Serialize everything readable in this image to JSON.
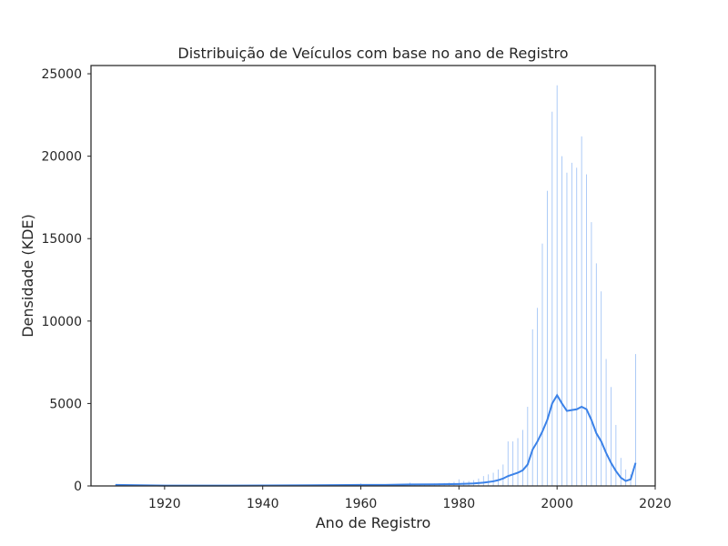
{
  "chart_data": {
    "type": "bar",
    "title": "Distribuição de Veículos com base no ano de Registro",
    "xlabel": "Ano de Registro",
    "ylabel": "Densidade (KDE)",
    "xlim": [
      1905,
      2020
    ],
    "ylim": [
      0,
      25500
    ],
    "xticks": [
      1920,
      1940,
      1960,
      1980,
      2000,
      2020
    ],
    "yticks": [
      0,
      5000,
      10000,
      15000,
      20000,
      25000
    ],
    "grid": false,
    "legend": "none",
    "bar_color": "#4a8cec",
    "line_color": "#3b82e8",
    "histogram": {
      "x": [
        1910,
        1960,
        1965,
        1968,
        1970,
        1971,
        1972,
        1973,
        1974,
        1975,
        1976,
        1977,
        1978,
        1979,
        1980,
        1981,
        1982,
        1983,
        1984,
        1985,
        1986,
        1987,
        1988,
        1989,
        1990,
        1991,
        1992,
        1993,
        1994,
        1995,
        1996,
        1997,
        1998,
        1999,
        2000,
        2001,
        2002,
        2003,
        2004,
        2005,
        2006,
        2007,
        2008,
        2009,
        2010,
        2011,
        2012,
        2013,
        2014,
        2015,
        2016
      ],
      "values": [
        100,
        150,
        80,
        100,
        200,
        130,
        120,
        130,
        120,
        150,
        160,
        180,
        200,
        250,
        400,
        300,
        300,
        350,
        450,
        600,
        700,
        800,
        1000,
        1300,
        2700,
        2700,
        2900,
        3400,
        4800,
        9500,
        10800,
        14700,
        17900,
        22700,
        24300,
        20000,
        19000,
        19600,
        19300,
        21200,
        18900,
        16000,
        13500,
        11800,
        7700,
        6000,
        3700,
        1700,
        1000,
        700,
        8000
      ]
    },
    "kde": {
      "x": [
        1910,
        1920,
        1930,
        1940,
        1950,
        1960,
        1965,
        1970,
        1975,
        1980,
        1983,
        1985,
        1987,
        1988,
        1989,
        1990,
        1991,
        1992,
        1993,
        1994,
        1995,
        1996,
        1997,
        1998,
        1999,
        2000,
        2001,
        2002,
        2003,
        2004,
        2005,
        2006,
        2007,
        2008,
        2009,
        2010,
        2011,
        2012,
        2013,
        2014,
        2015,
        2016
      ],
      "values": [
        60,
        20,
        20,
        30,
        40,
        60,
        60,
        90,
        100,
        120,
        150,
        200,
        280,
        350,
        450,
        600,
        700,
        800,
        950,
        1300,
        2200,
        2700,
        3300,
        4000,
        5000,
        5500,
        5000,
        4550,
        4600,
        4650,
        4800,
        4650,
        4000,
        3200,
        2700,
        2000,
        1400,
        900,
        500,
        300,
        400,
        1400
      ]
    }
  }
}
